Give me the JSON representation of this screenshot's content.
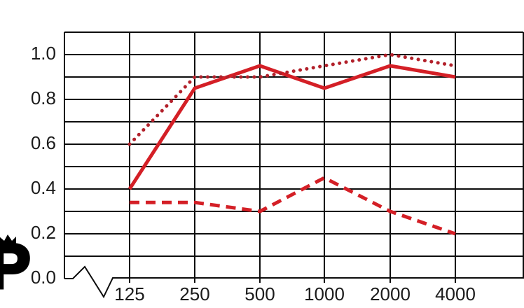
{
  "colors": {
    "grid": "#0d0d0d",
    "label": "#1b1b1b",
    "line_solid": "#d41f26",
    "line_dotted": "#b2202a",
    "line_dashed": "#d41f26",
    "logo": "#000000"
  },
  "chart_data": {
    "type": "line",
    "title": "",
    "xlabel": "",
    "ylabel": "",
    "categories": [
      "125",
      "250",
      "500",
      "1000",
      "2000",
      "4000"
    ],
    "series": [
      {
        "name": "solid-line",
        "style": "solid",
        "color": "#d41f26",
        "values": [
          0.4,
          0.85,
          0.95,
          0.85,
          0.95,
          0.9
        ]
      },
      {
        "name": "dotted-line",
        "style": "dotted",
        "color": "#b2202a",
        "values": [
          0.6,
          0.9,
          0.9,
          0.95,
          1.0,
          0.95
        ]
      },
      {
        "name": "dashed-line",
        "style": "dashed",
        "color": "#d41f26",
        "values": [
          0.34,
          0.34,
          0.3,
          0.45,
          0.3,
          0.2
        ]
      }
    ],
    "y_ticks": [
      {
        "label": "1.0",
        "value": 1.0
      },
      {
        "label": "0.8",
        "value": 0.8
      },
      {
        "label": "0.6",
        "value": 0.6
      },
      {
        "label": "0.4",
        "value": 0.4
      },
      {
        "label": "0.2",
        "value": 0.2
      },
      {
        "label": "0.0",
        "value": 0.0
      }
    ],
    "ylim": [
      0.0,
      1.1
    ],
    "grid": "horizontal every 0.1, vertical at each category; no legend",
    "legend_position": "none",
    "x_axis_break": true
  },
  "logo": {
    "letter": "P",
    "icon": "crown"
  }
}
